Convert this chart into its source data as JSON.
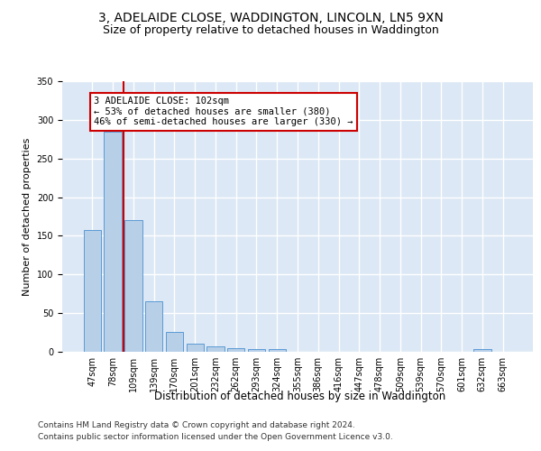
{
  "title": "3, ADELAIDE CLOSE, WADDINGTON, LINCOLN, LN5 9XN",
  "subtitle": "Size of property relative to detached houses in Waddington",
  "xlabel": "Distribution of detached houses by size in Waddington",
  "ylabel": "Number of detached properties",
  "categories": [
    "47sqm",
    "78sqm",
    "109sqm",
    "139sqm",
    "170sqm",
    "201sqm",
    "232sqm",
    "262sqm",
    "293sqm",
    "324sqm",
    "355sqm",
    "386sqm",
    "416sqm",
    "447sqm",
    "478sqm",
    "509sqm",
    "539sqm",
    "570sqm",
    "601sqm",
    "632sqm",
    "663sqm"
  ],
  "values": [
    157,
    285,
    170,
    65,
    26,
    10,
    7,
    5,
    3,
    3,
    0,
    0,
    0,
    0,
    0,
    0,
    0,
    0,
    0,
    3,
    0
  ],
  "bar_color": "#b8cfe8",
  "bar_edge_color": "#5b9bd5",
  "vline_x": 1.5,
  "vline_color": "#cc0000",
  "annotation_text": "3 ADELAIDE CLOSE: 102sqm\n← 53% of detached houses are smaller (380)\n46% of semi-detached houses are larger (330) →",
  "annotation_box_color": "#ffffff",
  "annotation_box_edge_color": "#cc0000",
  "ylim": [
    0,
    350
  ],
  "yticks": [
    0,
    50,
    100,
    150,
    200,
    250,
    300,
    350
  ],
  "background_color": "#dce8f5",
  "grid_color": "#ffffff",
  "footer_line1": "Contains HM Land Registry data © Crown copyright and database right 2024.",
  "footer_line2": "Contains public sector information licensed under the Open Government Licence v3.0.",
  "title_fontsize": 10,
  "subtitle_fontsize": 9,
  "xlabel_fontsize": 8.5,
  "ylabel_fontsize": 8,
  "tick_fontsize": 7,
  "footer_fontsize": 6.5
}
